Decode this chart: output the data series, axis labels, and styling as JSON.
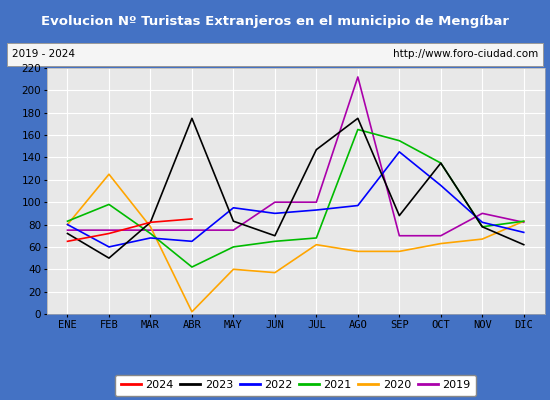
{
  "title": "Evolucion Nº Turistas Extranjeros en el municipio de Mengíbar",
  "subtitle_left": "2019 - 2024",
  "subtitle_right": "http://www.foro-ciudad.com",
  "months": [
    "ENE",
    "FEB",
    "MAR",
    "ABR",
    "MAY",
    "JUN",
    "JUL",
    "AGO",
    "SEP",
    "OCT",
    "NOV",
    "DIC"
  ],
  "ylim": [
    0,
    220
  ],
  "yticks": [
    0,
    20,
    40,
    60,
    80,
    100,
    120,
    140,
    160,
    180,
    200,
    220
  ],
  "series": {
    "2024": {
      "color": "#ff0000",
      "values": [
        65,
        72,
        82,
        85,
        null,
        null,
        null,
        null,
        null,
        null,
        null,
        null
      ]
    },
    "2023": {
      "color": "#000000",
      "values": [
        72,
        50,
        82,
        175,
        83,
        70,
        147,
        175,
        88,
        135,
        78,
        62
      ]
    },
    "2022": {
      "color": "#0000ff",
      "values": [
        80,
        60,
        68,
        65,
        95,
        90,
        93,
        97,
        145,
        115,
        82,
        73
      ]
    },
    "2021": {
      "color": "#00bb00",
      "values": [
        83,
        98,
        72,
        42,
        60,
        65,
        68,
        165,
        155,
        135,
        78,
        83
      ]
    },
    "2020": {
      "color": "#ffa500",
      "values": [
        80,
        125,
        78,
        2,
        40,
        37,
        62,
        56,
        56,
        63,
        67,
        83
      ]
    },
    "2019": {
      "color": "#aa00aa",
      "values": [
        75,
        75,
        75,
        75,
        75,
        100,
        100,
        212,
        70,
        70,
        90,
        82
      ]
    }
  },
  "title_bg_color": "#4472c4",
  "title_text_color": "#ffffff",
  "plot_bg_color": "#e8e8e8",
  "header_bg_color": "#f5f5f5",
  "grid_color": "#ffffff",
  "border_color": "#4472c4",
  "legend_order": [
    "2024",
    "2023",
    "2022",
    "2021",
    "2020",
    "2019"
  ]
}
